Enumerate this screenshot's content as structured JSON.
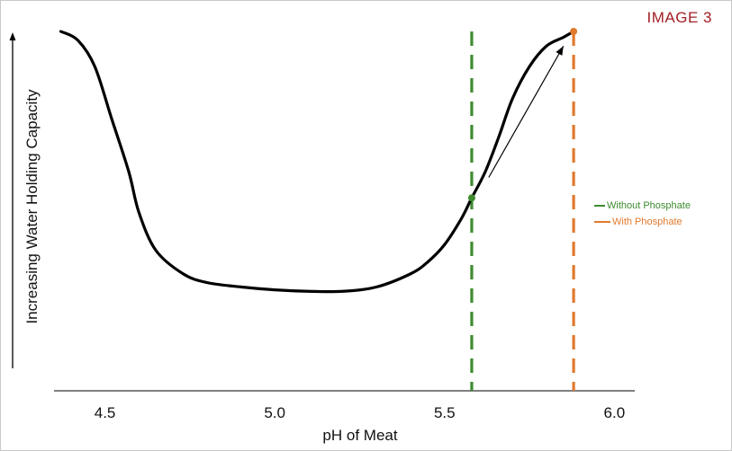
{
  "image_label": "IMAGE 3",
  "chart_data": {
    "type": "line",
    "xlabel": "pH of Meat",
    "ylabel": "Increasing Water Holding Capacity",
    "xlim": [
      4.35,
      6.06
    ],
    "ylim": [
      0,
      1
    ],
    "xticks": [
      "4.5",
      "5.0",
      "5.5",
      "6.0"
    ],
    "grid": false,
    "legend_position": "right",
    "series": [
      {
        "name": "",
        "color": "#000000",
        "x": [
          4.37,
          4.42,
          4.47,
          4.52,
          4.57,
          4.6,
          4.65,
          4.73,
          4.8,
          4.9,
          5.0,
          5.1,
          5.2,
          5.3,
          5.4,
          5.45,
          5.5,
          5.55,
          5.58,
          5.62,
          5.66,
          5.7,
          5.75,
          5.8,
          5.85,
          5.88
        ],
        "y": [
          1.0,
          0.97,
          0.88,
          0.7,
          0.52,
          0.38,
          0.25,
          0.17,
          0.14,
          0.125,
          0.115,
          0.11,
          0.11,
          0.125,
          0.17,
          0.21,
          0.27,
          0.36,
          0.43,
          0.52,
          0.64,
          0.77,
          0.88,
          0.95,
          0.98,
          1.0
        ]
      }
    ],
    "reference_lines": [
      {
        "name": "Without Phosphate",
        "x": 5.58,
        "color": "#3e8b2f",
        "style": "dashed",
        "marker_y": 0.43
      },
      {
        "name": "With Phosphate",
        "x": 5.88,
        "color": "#e07a2e",
        "style": "dashed",
        "marker_y": 1.0
      }
    ],
    "arrow": {
      "from": [
        5.63,
        0.5
      ],
      "to": [
        5.85,
        0.95
      ]
    }
  }
}
